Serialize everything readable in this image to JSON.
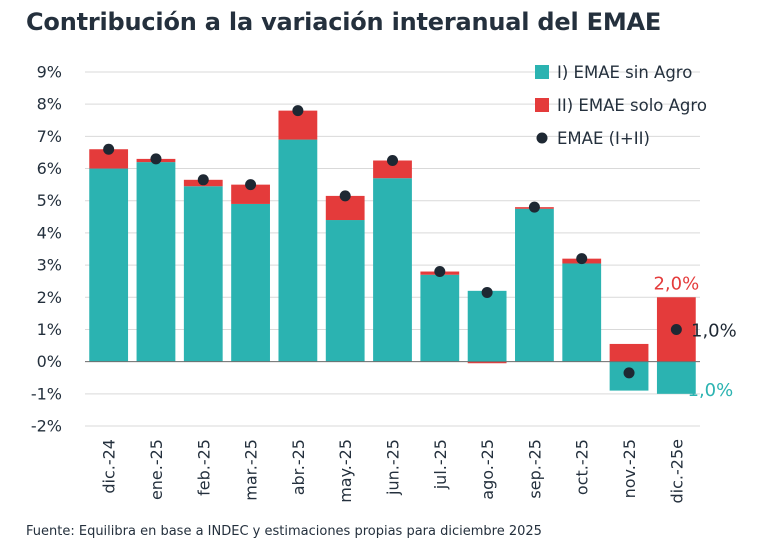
{
  "title": "Contribución a la variación interanual del EMAE",
  "source": "Fuente: Equilibra en base a INDEC y estimaciones propias para diciembre 2025",
  "colors": {
    "sin_agro": "#2bb3b1",
    "solo_agro": "#e43b3b",
    "emae": "#1e2833",
    "grid": "#d9d9d9",
    "text": "#24303d"
  },
  "chart_data": {
    "type": "bar",
    "stacked": true,
    "categories": [
      "dic.-24",
      "ene.-25",
      "feb.-25",
      "mar.-25",
      "abr.-25",
      "may.-25",
      "jun.-25",
      "jul.-25",
      "ago.-25",
      "sep.-25",
      "oct.-25",
      "nov.-25",
      "dic.-25e"
    ],
    "series": [
      {
        "name": "I) EMAE sin Agro",
        "type": "bar",
        "color": "#2bb3b1",
        "values": [
          6.0,
          6.2,
          5.45,
          4.9,
          6.9,
          4.4,
          5.7,
          2.7,
          2.2,
          4.75,
          3.05,
          -0.9,
          -1.0
        ]
      },
      {
        "name": "II) EMAE solo Agro",
        "type": "bar",
        "color": "#e43b3b",
        "values": [
          0.6,
          0.1,
          0.2,
          0.6,
          0.9,
          0.75,
          0.55,
          0.1,
          -0.05,
          0.05,
          0.15,
          0.55,
          2.0
        ]
      },
      {
        "name": "EMAE (I+II)",
        "type": "scatter",
        "color": "#1e2833",
        "values": [
          6.6,
          6.3,
          5.65,
          5.5,
          7.8,
          5.15,
          6.25,
          2.8,
          2.15,
          4.8,
          3.2,
          -0.35,
          1.0
        ]
      }
    ],
    "annotations": [
      {
        "text": "2,0%",
        "color": "#e43b3b",
        "category": "dic.-25e",
        "value": 2.0
      },
      {
        "text": "1,0%",
        "color": "#1e2833",
        "category": "dic.-25e",
        "value": 1.0
      },
      {
        "text": "-1,0%",
        "color": "#2bb3b1",
        "category": "dic.-25e",
        "value": -1.0
      }
    ],
    "yticks": [
      {
        "value": 9,
        "label": "9%"
      },
      {
        "value": 8,
        "label": "8%"
      },
      {
        "value": 7,
        "label": "7%"
      },
      {
        "value": 6,
        "label": "6%"
      },
      {
        "value": 5,
        "label": "5%"
      },
      {
        "value": 4,
        "label": "4%"
      },
      {
        "value": 3,
        "label": "3%"
      },
      {
        "value": 2,
        "label": "2%"
      },
      {
        "value": 1,
        "label": "1%"
      },
      {
        "value": 0,
        "label": "0%"
      },
      {
        "value": -1,
        "label": "-1%"
      },
      {
        "value": -2,
        "label": "-2%"
      }
    ],
    "ylim": [
      -2,
      9
    ],
    "grid": true,
    "legend_position": "top-right",
    "xlabel": "",
    "ylabel": ""
  }
}
